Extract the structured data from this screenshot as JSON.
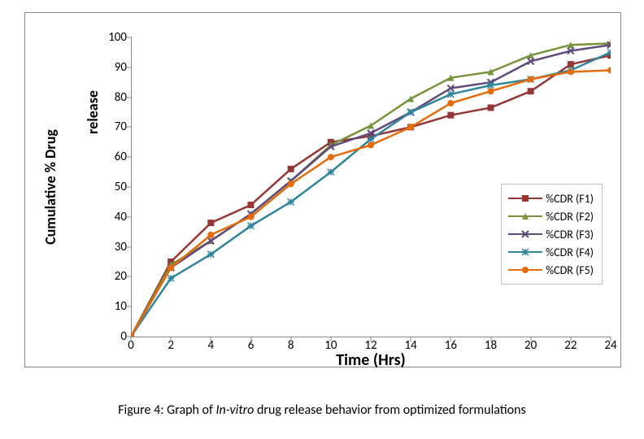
{
  "chart": {
    "type": "line",
    "background_color": "#ffffff",
    "frame_border_color": "#888888",
    "axis_color": "#888888",
    "x": [
      0,
      2,
      4,
      6,
      8,
      10,
      12,
      14,
      16,
      18,
      20,
      22,
      24
    ],
    "xlim": [
      0,
      24
    ],
    "ylim": [
      0,
      100
    ],
    "xticks": [
      0,
      2,
      4,
      6,
      8,
      10,
      12,
      14,
      16,
      18,
      20,
      22,
      24
    ],
    "yticks": [
      0,
      10,
      20,
      30,
      40,
      50,
      60,
      70,
      80,
      90,
      100
    ],
    "xlabel": "Time (Hrs)",
    "ylabel": "Cumulative % Drug",
    "ylabel2": "release",
    "tick_fontsize": 15,
    "label_fontsize_x": 20,
    "label_fontsize_y": 18,
    "label_fontweight": "bold",
    "line_width": 2.5,
    "marker_size": 8,
    "legend_border_color": "#c0c0c0",
    "legend_fontsize": 14,
    "series": [
      {
        "label": "%CDR (F1)",
        "y": [
          0,
          25,
          38,
          44,
          56,
          65,
          67,
          70,
          74,
          76.5,
          82,
          91,
          94
        ],
        "color": "#953735",
        "marker": "square"
      },
      {
        "label": "%CDR (F2)",
        "y": [
          0,
          24,
          32,
          41,
          52,
          64,
          70.5,
          79.5,
          86.5,
          88.5,
          94,
          97.5,
          98
        ],
        "color": "#77933c",
        "marker": "triangle"
      },
      {
        "label": "%CDR (F3)",
        "y": [
          0,
          23,
          32,
          41,
          52,
          63.5,
          68,
          75,
          83,
          85,
          92,
          95.5,
          97.5
        ],
        "color": "#604a7b",
        "marker": "x"
      },
      {
        "label": "%CDR (F4)",
        "y": [
          0,
          19.5,
          27.5,
          37,
          45,
          55,
          66,
          75,
          81,
          84,
          86,
          89,
          95
        ],
        "color": "#31859c",
        "marker": "asterisk"
      },
      {
        "label": "%CDR (F5)",
        "y": [
          0,
          23,
          34,
          40,
          51,
          60,
          64,
          70,
          78,
          82,
          86,
          88.5,
          89
        ],
        "color": "#e46c0a",
        "marker": "circle"
      }
    ]
  },
  "caption": {
    "prefix": "Figure 4: Graph of ",
    "italic": "In-vitro",
    "suffix": " drug release behavior from optimized formulations"
  }
}
